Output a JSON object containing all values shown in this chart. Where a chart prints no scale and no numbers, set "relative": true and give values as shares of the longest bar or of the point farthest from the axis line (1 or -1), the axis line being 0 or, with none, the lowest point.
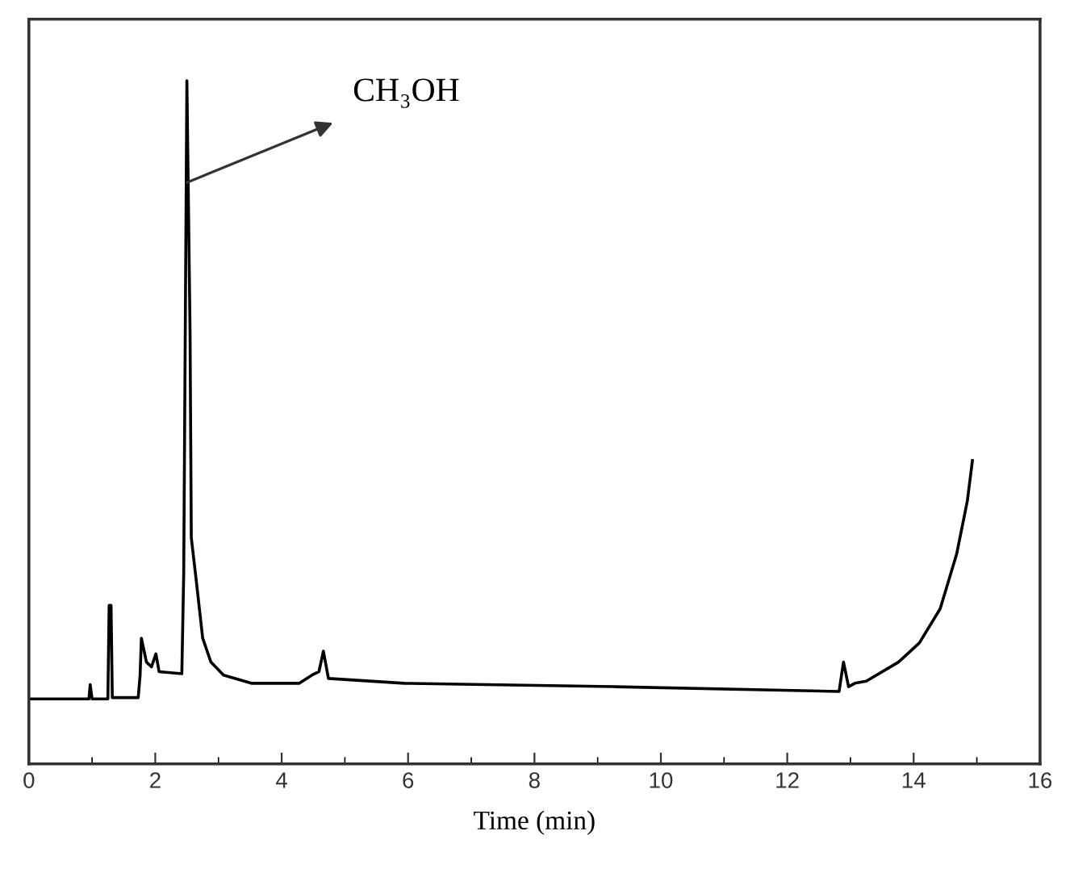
{
  "chart_data": {
    "type": "line",
    "relative": true,
    "xlabel": "Time (min)",
    "x": [
      0,
      0.95,
      0.97,
      1.0,
      1.25,
      1.27,
      1.3,
      1.32,
      1.73,
      1.76,
      1.78,
      1.86,
      1.94,
      2.01,
      2.06,
      2.42,
      2.45,
      2.5,
      2.55,
      2.57,
      2.65,
      2.75,
      2.88,
      3.08,
      3.52,
      4.28,
      4.48,
      4.59,
      4.66,
      4.74,
      5.94,
      9.25,
      12.82,
      12.89,
      12.97,
      13.07,
      13.25,
      13.76,
      14.09,
      14.42,
      14.68,
      14.85,
      14.93
    ],
    "series": [
      {
        "color": "#000000",
        "values": [
          0.095,
          0.095,
          0.116,
          0.095,
          0.095,
          0.232,
          0.232,
          0.097,
          0.097,
          0.13,
          0.184,
          0.149,
          0.142,
          0.161,
          0.135,
          0.132,
          0.279,
          1,
          0.634,
          0.331,
          0.267,
          0.184,
          0.149,
          0.13,
          0.118,
          0.118,
          0.13,
          0.135,
          0.165,
          0.125,
          0.118,
          0.113,
          0.106,
          0.149,
          0.113,
          0.118,
          0.121,
          0.149,
          0.177,
          0.227,
          0.307,
          0.385,
          0.444
        ]
      }
    ],
    "xlim": [
      0,
      16
    ],
    "xticks": [
      0,
      {
        "value": 1,
        "label": null
      },
      2,
      {
        "value": 3,
        "label": null
      },
      4,
      {
        "value": 5,
        "label": null
      },
      6,
      {
        "value": 7,
        "label": null
      },
      8,
      {
        "value": 9,
        "label": null
      },
      10,
      {
        "value": 11,
        "label": null
      },
      12,
      {
        "value": 13,
        "label": null
      },
      14,
      {
        "value": 15,
        "label": null
      },
      16
    ],
    "annotations": [
      {
        "text": "CH₃OH",
        "x": 2.5,
        "y": 0.851
      }
    ],
    "grid": false,
    "marker": "none",
    "line_style": "solid"
  }
}
